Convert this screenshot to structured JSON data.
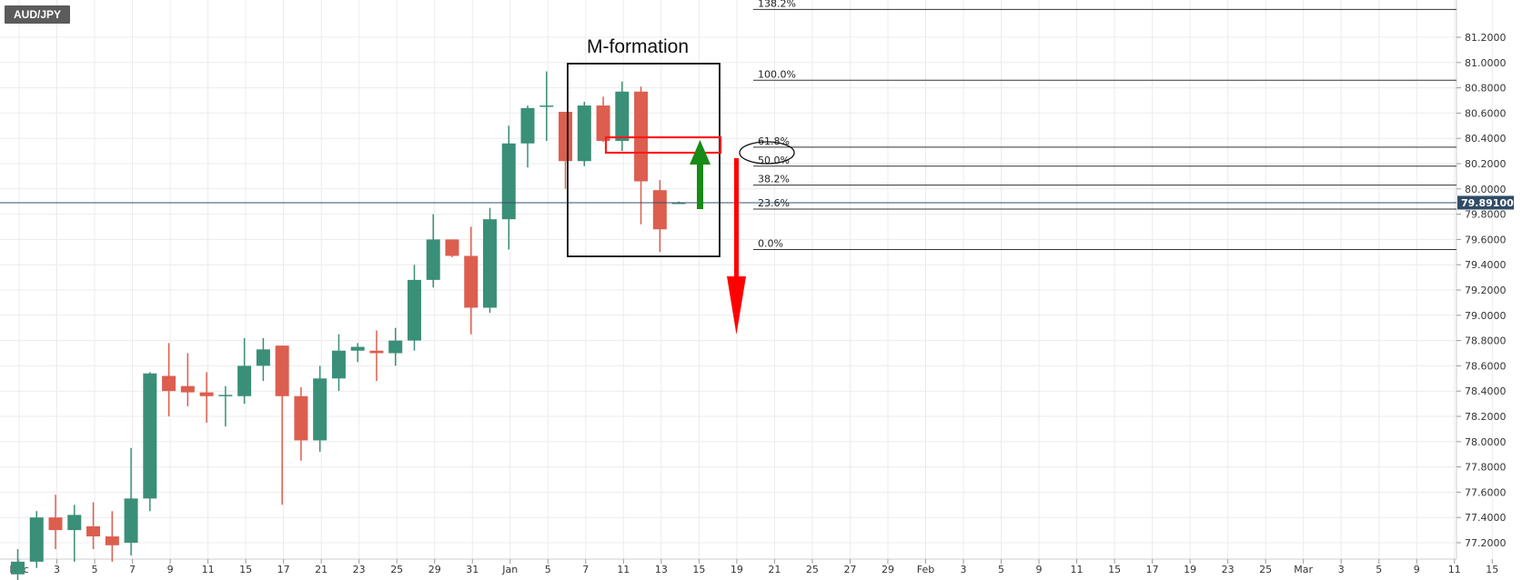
{
  "symbol": "AUD/JPY",
  "annotation_title": "M-formation",
  "current_price_label": "79.89100",
  "colors": {
    "bull": "#3a8f78",
    "bear": "#dc5e4f",
    "grid": "#ececec",
    "price_line": "#35506a",
    "label_bg": "#2f4b66",
    "up_arrow": "#178a17",
    "down_arrow": "#ff0000"
  },
  "chart_data": {
    "type": "candlestick",
    "title": "AUD/JPY",
    "ylim": [
      77.0,
      81.4
    ],
    "y_ticks": [
      "77.2000",
      "77.4000",
      "77.6000",
      "77.8000",
      "78.0000",
      "78.2000",
      "78.4000",
      "78.6000",
      "78.8000",
      "79.0000",
      "79.2000",
      "79.4000",
      "79.6000",
      "79.8000",
      "80.0000",
      "80.2000",
      "80.4000",
      "80.6000",
      "80.8000",
      "81.0000",
      "81.2000"
    ],
    "x_ticks": [
      "Dec",
      "3",
      "5",
      "7",
      "9",
      "11",
      "15",
      "17",
      "21",
      "23",
      "25",
      "29",
      "31",
      "Jan",
      "5",
      "7",
      "11",
      "13",
      "15",
      "19",
      "21",
      "25",
      "27",
      "29",
      "Feb",
      "3",
      "5",
      "9",
      "11",
      "15",
      "17",
      "19",
      "23",
      "25",
      "Mar",
      "3",
      "5",
      "9",
      "11",
      "15"
    ],
    "candles": [
      {
        "date": "Dec 1",
        "o": 76.95,
        "h": 77.15,
        "l": 76.85,
        "c": 77.05
      },
      {
        "date": "Dec 2",
        "o": 77.05,
        "h": 77.45,
        "l": 77.0,
        "c": 77.4
      },
      {
        "date": "Dec 3",
        "o": 77.4,
        "h": 77.58,
        "l": 77.15,
        "c": 77.3
      },
      {
        "date": "Dec 4",
        "o": 77.3,
        "h": 77.5,
        "l": 77.05,
        "c": 77.42
      },
      {
        "date": "Dec 7",
        "o": 77.33,
        "h": 77.52,
        "l": 77.15,
        "c": 77.25
      },
      {
        "date": "Dec 8",
        "o": 77.25,
        "h": 77.45,
        "l": 77.05,
        "c": 77.18
      },
      {
        "date": "Dec 9",
        "o": 77.2,
        "h": 77.95,
        "l": 77.1,
        "c": 77.55
      },
      {
        "date": "Dec 10",
        "o": 77.55,
        "h": 78.55,
        "l": 77.45,
        "c": 78.54
      },
      {
        "date": "Dec 11",
        "o": 78.52,
        "h": 78.78,
        "l": 78.2,
        "c": 78.4
      },
      {
        "date": "Dec 14",
        "o": 78.44,
        "h": 78.7,
        "l": 78.28,
        "c": 78.39
      },
      {
        "date": "Dec 15",
        "o": 78.39,
        "h": 78.55,
        "l": 78.15,
        "c": 78.36
      },
      {
        "date": "Dec 16",
        "o": 78.36,
        "h": 78.44,
        "l": 78.12,
        "c": 78.37
      },
      {
        "date": "Dec 17",
        "o": 78.36,
        "h": 78.82,
        "l": 78.3,
        "c": 78.6
      },
      {
        "date": "Dec 18",
        "o": 78.6,
        "h": 78.82,
        "l": 78.48,
        "c": 78.73
      },
      {
        "date": "Dec 21",
        "o": 78.76,
        "h": 78.76,
        "l": 77.5,
        "c": 78.36
      },
      {
        "date": "Dec 22",
        "o": 78.36,
        "h": 78.43,
        "l": 77.85,
        "c": 78.01
      },
      {
        "date": "Dec 23",
        "o": 78.01,
        "h": 78.6,
        "l": 77.92,
        "c": 78.5
      },
      {
        "date": "Dec 24",
        "o": 78.5,
        "h": 78.85,
        "l": 78.4,
        "c": 78.72
      },
      {
        "date": "Dec 25",
        "o": 78.72,
        "h": 78.78,
        "l": 78.63,
        "c": 78.75
      },
      {
        "date": "Dec 28",
        "o": 78.72,
        "h": 78.88,
        "l": 78.48,
        "c": 78.7
      },
      {
        "date": "Dec 29",
        "o": 78.7,
        "h": 78.9,
        "l": 78.6,
        "c": 78.8
      },
      {
        "date": "Dec 30",
        "o": 78.8,
        "h": 79.4,
        "l": 78.72,
        "c": 79.28
      },
      {
        "date": "Dec 31",
        "o": 79.28,
        "h": 79.8,
        "l": 79.22,
        "c": 79.6
      },
      {
        "date": "Jan 1",
        "o": 79.6,
        "h": 79.6,
        "l": 79.46,
        "c": 79.47
      },
      {
        "date": "Jan 4",
        "o": 79.47,
        "h": 79.7,
        "l": 78.85,
        "c": 79.06
      },
      {
        "date": "Jan 5",
        "o": 79.06,
        "h": 79.85,
        "l": 79.02,
        "c": 79.76
      },
      {
        "date": "Jan 6",
        "o": 79.76,
        "h": 80.5,
        "l": 79.52,
        "c": 80.36
      },
      {
        "date": "Jan 7",
        "o": 80.36,
        "h": 80.66,
        "l": 80.17,
        "c": 80.64
      },
      {
        "date": "Jan 8",
        "o": 80.65,
        "h": 80.93,
        "l": 80.38,
        "c": 80.66
      },
      {
        "date": "Jan 11",
        "o": 80.61,
        "h": 80.61,
        "l": 80.0,
        "c": 80.22
      },
      {
        "date": "Jan 12",
        "o": 80.22,
        "h": 80.69,
        "l": 80.18,
        "c": 80.66
      },
      {
        "date": "Jan 13",
        "o": 80.66,
        "h": 80.73,
        "l": 80.37,
        "c": 80.38
      },
      {
        "date": "Jan 14",
        "o": 80.38,
        "h": 80.85,
        "l": 80.3,
        "c": 80.77
      },
      {
        "date": "Jan 15",
        "o": 80.77,
        "h": 80.81,
        "l": 79.72,
        "c": 80.06
      },
      {
        "date": "Jan 18",
        "o": 79.99,
        "h": 80.07,
        "l": 79.5,
        "c": 79.68
      },
      {
        "date": "Jan 19",
        "o": 79.89,
        "h": 79.9,
        "l": 79.88,
        "c": 79.891
      }
    ]
  },
  "fibonacci": {
    "levels": [
      {
        "label": "138.2%",
        "price": 81.42
      },
      {
        "label": "100.0%",
        "price": 80.86
      },
      {
        "label": "61.8%",
        "price": 80.33
      },
      {
        "label": "50.0%",
        "price": 80.18
      },
      {
        "label": "38.2%",
        "price": 80.03
      },
      {
        "label": "23.6%",
        "price": 79.84
      },
      {
        "label": "0.0%",
        "price": 79.52
      }
    ]
  }
}
